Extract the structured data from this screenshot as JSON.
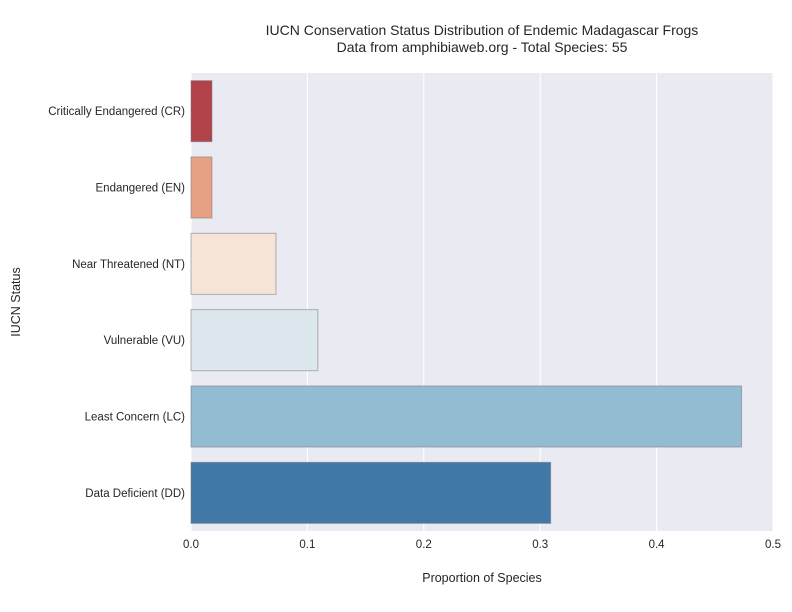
{
  "chart_data": {
    "type": "bar",
    "orientation": "horizontal",
    "title": "IUCN Conservation Status Distribution of Endemic Madagascar Frogs",
    "subtitle": "Data from amphibiaweb.org - Total Species: 55",
    "xlabel": "Proportion of Species",
    "ylabel": "IUCN Status",
    "xlim": [
      0,
      0.5
    ],
    "xticks": [
      "0.0",
      "0.1",
      "0.2",
      "0.3",
      "0.4",
      "0.5"
    ],
    "grid": true,
    "categories": [
      "Critically Endangered (CR)",
      "Endangered (EN)",
      "Near Threatened (NT)",
      "Vulnerable (VU)",
      "Least Concern (LC)",
      "Data Deficient (DD)"
    ],
    "values": [
      0.018,
      0.018,
      0.073,
      0.109,
      0.473,
      0.309
    ],
    "colors": [
      "#b2424a",
      "#e6a185",
      "#f7e4d9",
      "#dde7ee",
      "#93bbd1",
      "#4278a7"
    ],
    "background": "#eaeaf2"
  }
}
